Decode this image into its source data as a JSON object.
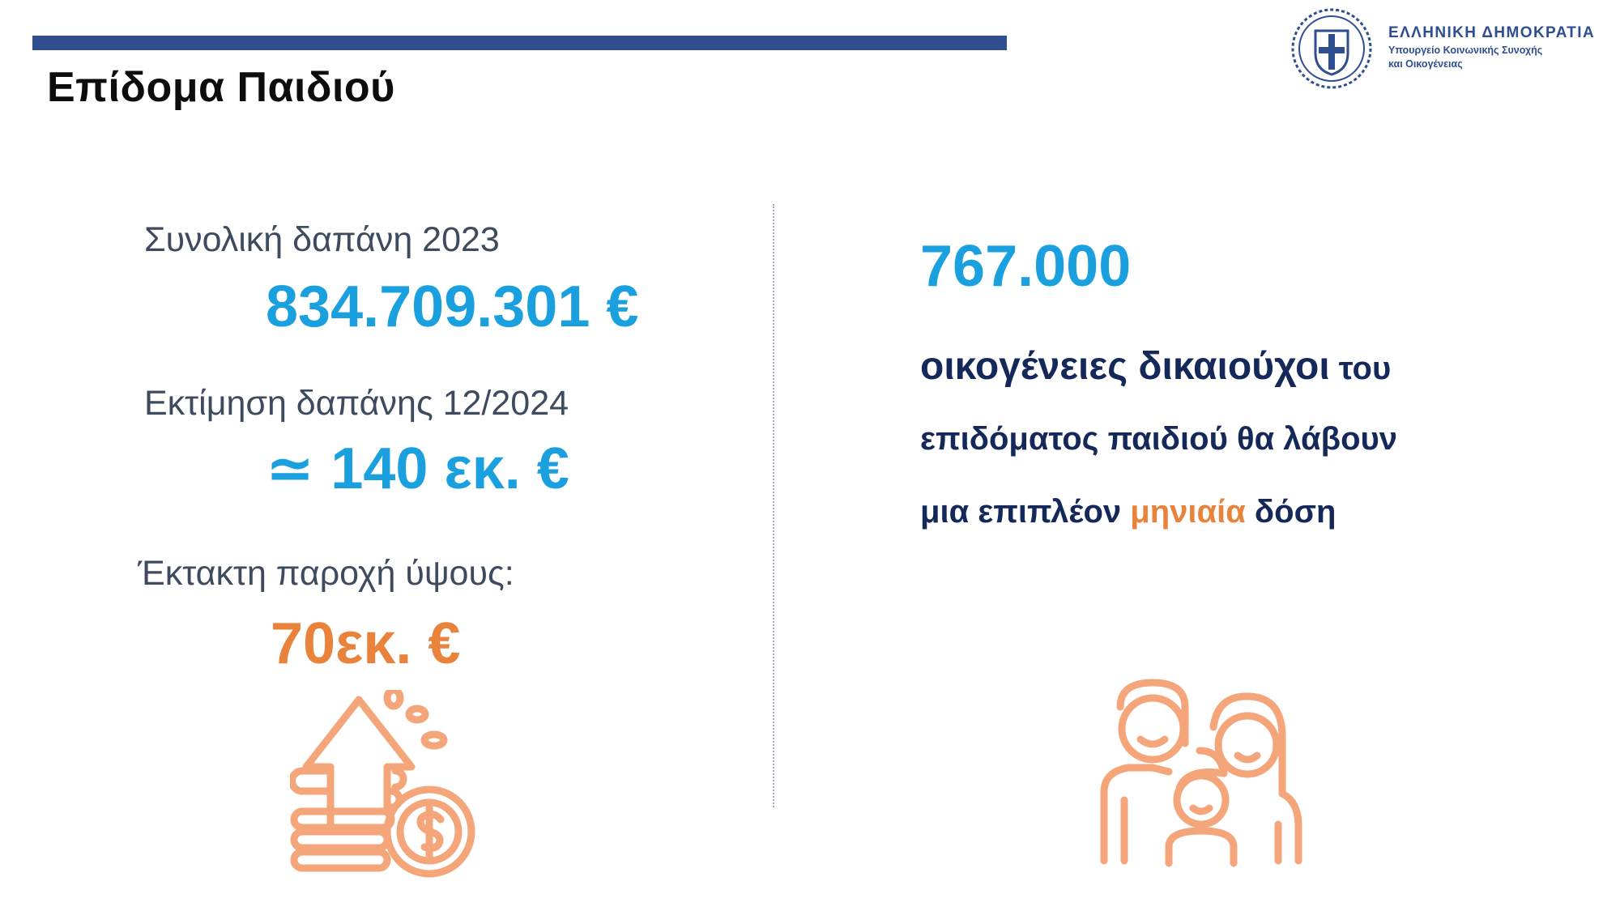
{
  "header": {
    "title": "Επίδομα Παιδιού"
  },
  "logo": {
    "line1": "ΕΛΛΗΝΙΚΗ ΔΗΜΟΚΡΑΤΙΑ",
    "line2": "Υπουργείο Κοινωνικής Συνοχής",
    "line3": "και Οικογένειας"
  },
  "left": {
    "total_label": "Συνολική δαπάνη 2023",
    "total_value": "834.709.301 €",
    "estimate_label": "Εκτίμηση δαπάνης 12/2024",
    "estimate_value": "≃ 140 εκ. €",
    "extra_label": "Έκτακτη παροχή ύψους:",
    "extra_value": "70εκ. €"
  },
  "right": {
    "count": "767.000",
    "line1_bold": "οικογένειες δικαιούχοι",
    "line1_rest": " του",
    "line2": "επιδόματος παιδιού θα λάβουν",
    "line3_start": "μια επιπλέον ",
    "line3_highlight": "μηνιαία",
    "line3_end": " δόση"
  },
  "icons": {
    "money": "money-growth-icon",
    "family": "family-icon",
    "emblem": "greek-coat-of-arms-icon"
  },
  "colors": {
    "accent_blue": "#1aa0de",
    "accent_orange": "#e9833c",
    "navy": "#14285a",
    "bar": "#2e4e8f"
  }
}
